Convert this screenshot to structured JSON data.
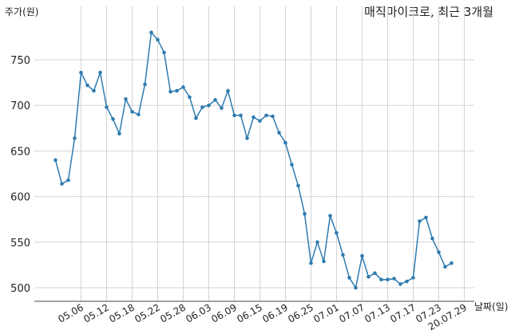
{
  "chart_data": {
    "type": "line",
    "title": "매직마이크로, 최근 3개월",
    "ylabel": "주가(원)",
    "xlabel": "날짜(일)",
    "ylim": [
      490,
      782
    ],
    "yticks": [
      500,
      550,
      600,
      650,
      700,
      750
    ],
    "grid": true,
    "color": "#2e7bb0",
    "x_ticks": [
      "05.06",
      "05.12",
      "05.18",
      "05.22",
      "05.28",
      "06.03",
      "06.09",
      "06.15",
      "06.19",
      "06.25",
      "07.01",
      "07.07",
      "07.13",
      "07.17",
      "07.23",
      "20.07.29"
    ],
    "x_tick_index": [
      4,
      8,
      12,
      16,
      20,
      24,
      28,
      32,
      36,
      40,
      44,
      48,
      52,
      56,
      60,
      64
    ],
    "series": [
      {
        "values": [
          640,
          614,
          618,
          664,
          736,
          722,
          716,
          736,
          698,
          685,
          669,
          707,
          693,
          690,
          723,
          780,
          772,
          758,
          715,
          716,
          720,
          709,
          686,
          698,
          700,
          706,
          697,
          716,
          689,
          689,
          664,
          687,
          683,
          689,
          688,
          670,
          659,
          635,
          612,
          581,
          527,
          550,
          529,
          579,
          560,
          536,
          511,
          500,
          535,
          512,
          516,
          509,
          509,
          510,
          504,
          507,
          511,
          573,
          577,
          554,
          539,
          523,
          527
        ]
      }
    ]
  }
}
